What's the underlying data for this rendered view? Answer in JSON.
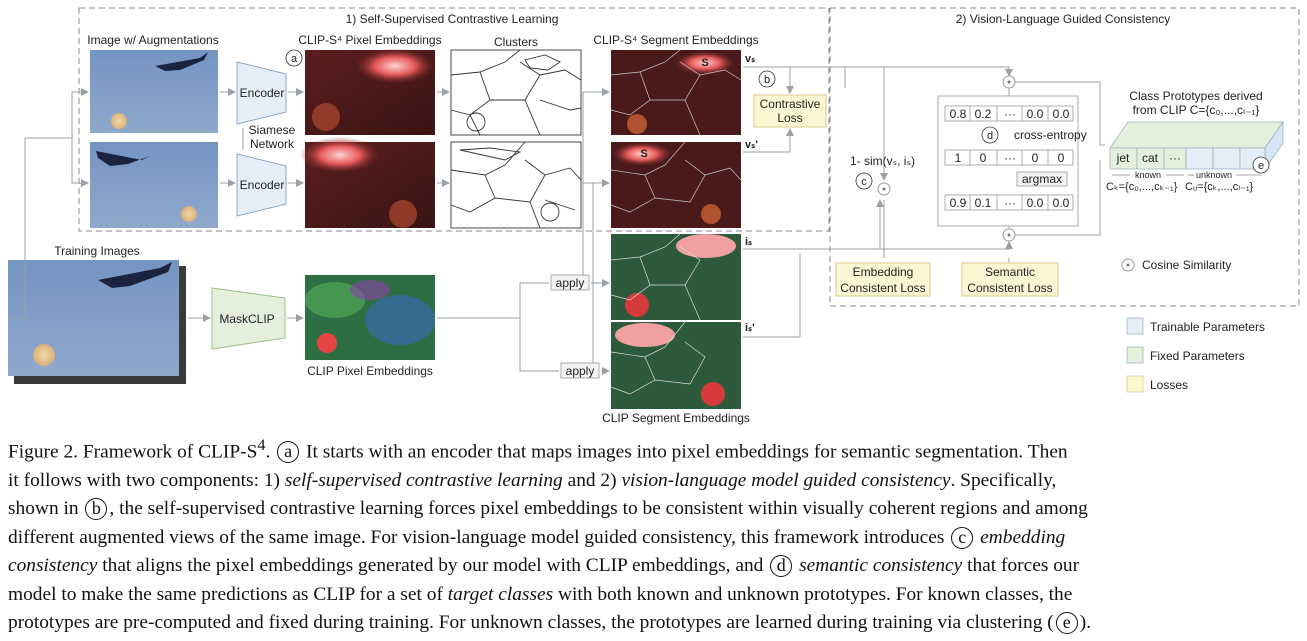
{
  "sections": {
    "ssl_title": "1) Self-Supervised Contrastive Learning",
    "vlg_title": "2) Vision-Language Guided Consistency"
  },
  "labels": {
    "image_aug": "Image w/ Augmentations",
    "pixel_emb": "CLIP-S⁴ Pixel Embeddings",
    "clusters": "Clusters",
    "segment_emb": "CLIP-S⁴ Segment Embeddings",
    "encoder": "Encoder",
    "siamese": "Siamese",
    "network": "Network",
    "training_images": "Training Images",
    "maskclip": "MaskCLIP",
    "clip_pixel_emb": "CLIP Pixel Embeddings",
    "clip_segment_emb": "CLIP Segment Embeddings",
    "apply": "apply",
    "contrastive": "Contrastive",
    "loss": "Loss",
    "sim_text": "1- sim(vₛ, iₛ)",
    "cross_entropy": "cross-entropy",
    "argmax": "argmax",
    "embedding_consistent": "Embedding",
    "consistent_loss": "Consistent Loss",
    "semantic": "Semantic",
    "semantic_consistent_loss": "Consistent Loss",
    "class_proto_1": "Class Prototypes derived",
    "class_proto_2": "from CLIP C={c₀,...,cₗ₋₁}",
    "jet": "jet",
    "cat": "cat",
    "dots": "···",
    "known": "known",
    "unknown": "unknown",
    "ck": "Cₖ={c₀,...,cₖ₋₁}",
    "cu": "Cᵤ={cₖ,...,cₗ₋₁}",
    "cosine": "Cosine Similarity",
    "v_s": "vₛ",
    "v_s2": "vₛ'",
    "i_s": "iₛ",
    "i_s2": "iₛ'",
    "s": "S"
  },
  "markers": {
    "a": "a",
    "b": "b",
    "c": "c",
    "d": "d",
    "e": "e"
  },
  "rows": {
    "top": [
      "0.8",
      "0.2",
      "···",
      "0.0",
      "0.0"
    ],
    "mid": [
      "1",
      "0",
      "···",
      "0",
      "0"
    ],
    "bot": [
      "0.9",
      "0.1",
      "···",
      "0.0",
      "0.0"
    ]
  },
  "legend": {
    "trainable": "Trainable Parameters",
    "fixed": "Fixed Parameters",
    "losses": "Losses"
  },
  "colors": {
    "trainable": "#e3eef8",
    "fixed": "#e5f0dc",
    "losses": "#fdf6d2"
  },
  "caption": {
    "l1a": "Figure 2. Framework of CLIP-S",
    "l1sup": "4",
    "l1b": ". ",
    "l1c": " It starts with an encoder that maps images into pixel embeddings for semantic segmentation. Then",
    "l2a": "it follows with two components: 1) ",
    "l2b": "self-supervised contrastive learning",
    "l2c": " and 2) ",
    "l2d": "vision-language model guided consistency",
    "l2e": ". Specifically,",
    "l3a": "shown in ",
    "l3b": ", the self-supervised contrastive learning forces pixel embeddings to be consistent within visually coherent regions and among",
    "l4a": "different augmented views of the same image. For vision-language model guided consistency, this framework introduces ",
    "l4b": "embedding",
    "l5a": "consistency",
    "l5b": " that aligns the pixel embeddings generated by our model with CLIP embeddings, and ",
    "l5c": "semantic consistency",
    "l5d": " that forces our",
    "l6a": "model to make the same predictions as CLIP for a set of ",
    "l6b": "target classes",
    "l6c": " with both known and unknown prototypes. For known classes, the",
    "l7a": "prototypes are pre-computed and fixed during training. For unknown classes, the prototypes are learned during training via clustering (",
    "l7b": ")."
  }
}
